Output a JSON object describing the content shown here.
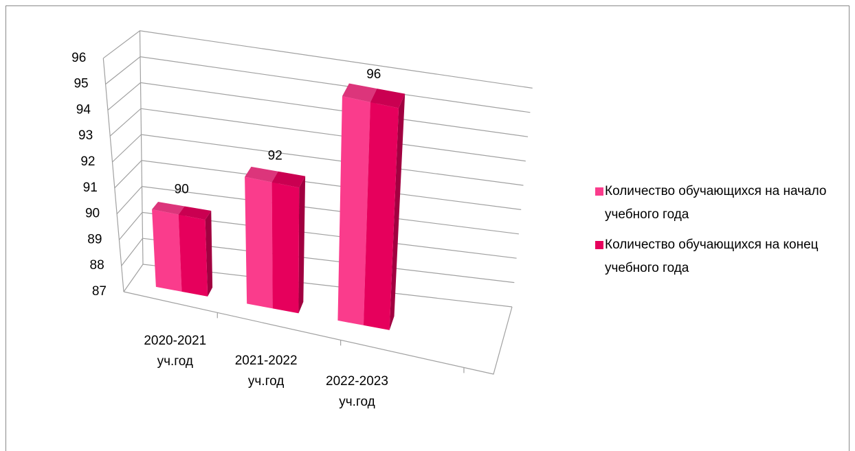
{
  "chart_data": {
    "type": "bar3d",
    "categories": [
      "2020-2021 уч.год",
      "2021-2022 уч.год",
      "2022-2023 уч.год"
    ],
    "series": [
      {
        "name": "Количество обучающихся на начало учебного года",
        "color": "#fa3c8c",
        "values": [
          90,
          92,
          96
        ]
      },
      {
        "name": "Количество обучающихся на конец учебного года",
        "color": "#e6005c",
        "values": [
          90,
          92,
          96
        ]
      }
    ],
    "ylim": [
      87,
      96
    ],
    "yticks": [
      87,
      88,
      89,
      90,
      91,
      92,
      93,
      94,
      95,
      96
    ],
    "grid": true,
    "legend": "right"
  }
}
